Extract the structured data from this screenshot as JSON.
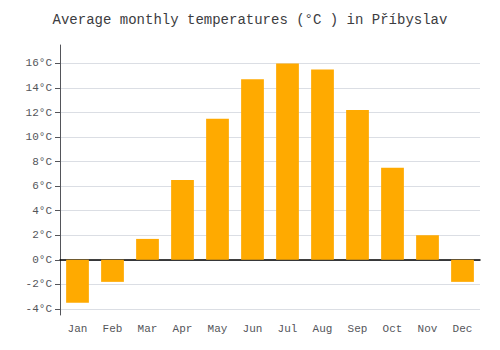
{
  "chart_data": {
    "type": "bar",
    "title": "Average monthly temperatures (°C ) in Příbyslav",
    "categories": [
      "Jan",
      "Feb",
      "Mar",
      "Apr",
      "May",
      "Jun",
      "Jul",
      "Aug",
      "Sep",
      "Oct",
      "Nov",
      "Dec"
    ],
    "values": [
      -3.5,
      -1.8,
      1.7,
      6.5,
      11.5,
      14.7,
      16.0,
      15.5,
      12.2,
      7.5,
      2.0,
      -1.8
    ],
    "color": "#FFAA00",
    "ylim": [
      -4.5,
      17.5
    ],
    "yticks": [
      {
        "value": -4,
        "label": "-4°C"
      },
      {
        "value": -2,
        "label": "-2°C"
      },
      {
        "value": 0,
        "label": "0°C"
      },
      {
        "value": 2,
        "label": "2°C"
      },
      {
        "value": 4,
        "label": "4°C"
      },
      {
        "value": 6,
        "label": "6°C"
      },
      {
        "value": 8,
        "label": "8°C"
      },
      {
        "value": 10,
        "label": "10°C"
      },
      {
        "value": 12,
        "label": "12°C"
      },
      {
        "value": 14,
        "label": "14°C"
      },
      {
        "value": 16,
        "label": "16°C"
      }
    ],
    "grid": true
  }
}
